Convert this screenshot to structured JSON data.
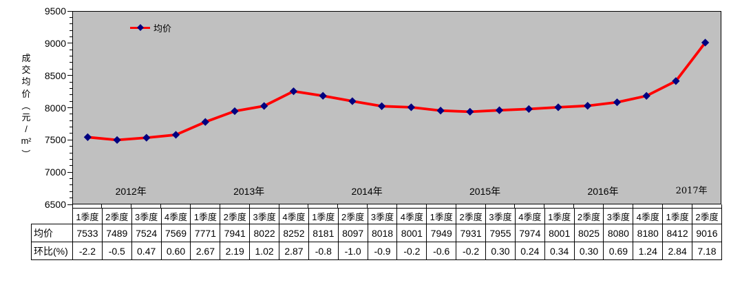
{
  "chart_data": {
    "type": "line",
    "title": "",
    "ylabel": "成交均价（元/m²）",
    "ylabel_chars": [
      "成",
      "交",
      "均",
      "价",
      "（",
      "元",
      "/",
      "m2",
      "）"
    ],
    "legend": {
      "position": "top",
      "entries": [
        "均价"
      ]
    },
    "y_axis": {
      "min": 6500,
      "max": 9500,
      "major_step": 500,
      "minor_step": 100,
      "tick_labels": [
        "9500",
        "9000",
        "8500",
        "8000",
        "7500",
        "7000",
        "6500"
      ]
    },
    "grid": "off",
    "years": [
      {
        "label": "2012年",
        "span": 4
      },
      {
        "label": "2013年",
        "span": 4
      },
      {
        "label": "2014年",
        "span": 4
      },
      {
        "label": "2015年",
        "span": 4
      },
      {
        "label": "2016年",
        "span": 4
      },
      {
        "label": "2017年",
        "span": 2
      }
    ],
    "categories": [
      "1季度",
      "2季度",
      "3季度",
      "4季度",
      "1季度",
      "2季度",
      "3季度",
      "4季度",
      "1季度",
      "2季度",
      "3季度",
      "4季度",
      "1季度",
      "2季度",
      "3季度",
      "4季度",
      "1季度",
      "2季度",
      "3季度",
      "4季度",
      "1季度",
      "2季度"
    ],
    "series": [
      {
        "name": "均价",
        "values": [
          7533,
          7489,
          7524,
          7569,
          7771,
          7941,
          8022,
          8252,
          8181,
          8097,
          8018,
          8001,
          7949,
          7931,
          7955,
          7974,
          8001,
          8025,
          8080,
          8180,
          8412,
          9016
        ]
      }
    ],
    "table": {
      "row_headers": [
        "均价",
        "环比(%)"
      ],
      "rows": [
        [
          "7533",
          "7489",
          "7524",
          "7569",
          "7771",
          "7941",
          "8022",
          "8252",
          "8181",
          "8097",
          "8018",
          "8001",
          "7949",
          "7931",
          "7955",
          "7974",
          "8001",
          "8025",
          "8080",
          "8180",
          "8412",
          "9016"
        ],
        [
          "-2.2",
          "-0.5",
          "0.47",
          "0.60",
          "2.67",
          "2.19",
          "1.02",
          "2.87",
          "-0.8",
          "-1.0",
          "-0.9",
          "-0.2",
          "-0.6",
          "-0.2",
          "0.30",
          "0.24",
          "0.34",
          "0.30",
          "0.69",
          "1.24",
          "2.84",
          "7.18"
        ]
      ]
    },
    "colors": {
      "plot_bg": "#c0c0c0",
      "line": "#ff0000",
      "marker": "#000080",
      "border": "#000000",
      "text": "#000000"
    }
  }
}
